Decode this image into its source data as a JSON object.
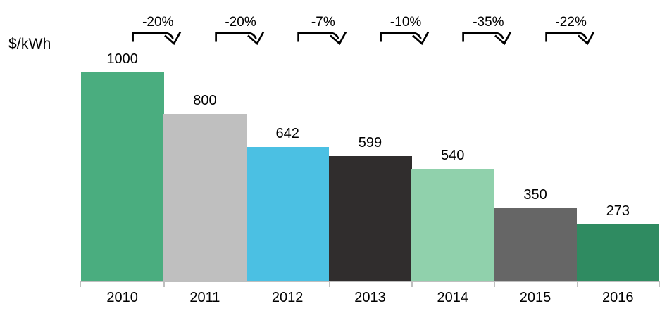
{
  "chart_data": {
    "type": "bar",
    "title": "",
    "ylabel": "$/kWh",
    "xlabel": "",
    "categories": [
      "2010",
      "2011",
      "2012",
      "2013",
      "2014",
      "2015",
      "2016"
    ],
    "values": [
      1000,
      800,
      642,
      599,
      540,
      350,
      273
    ],
    "bar_colors": [
      "#4AAD7F",
      "#BFBFBF",
      "#4BC0E3",
      "#302D2D",
      "#90D1AC",
      "#666666",
      "#2F8B61"
    ],
    "change_labels": [
      "-20%",
      "-20%",
      "-7%",
      "-10%",
      "-35%",
      "-22%"
    ],
    "ylim": [
      0,
      1000
    ],
    "grid": false,
    "legend": "none",
    "axis_color": "#BFBFBF",
    "label_color": "#000000",
    "arrow_color": "#000000"
  }
}
